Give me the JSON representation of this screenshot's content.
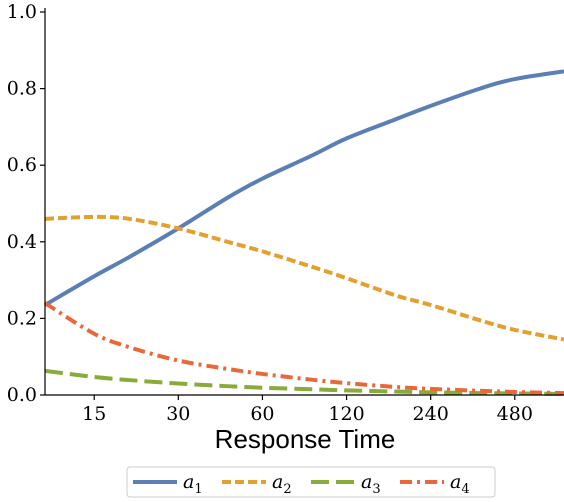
{
  "chart_data": {
    "type": "line",
    "xlabel": "Response Time",
    "ylabel": "",
    "title": "",
    "x_scale": "log2",
    "xlim": [
      10,
      720
    ],
    "ylim": [
      0,
      1.0
    ],
    "x_ticks": [
      {
        "value": 15,
        "label": "15"
      },
      {
        "value": 30,
        "label": "30"
      },
      {
        "value": 60,
        "label": "60"
      },
      {
        "value": 120,
        "label": "120"
      },
      {
        "value": 240,
        "label": "240"
      },
      {
        "value": 480,
        "label": "480"
      }
    ],
    "y_ticks": [
      {
        "value": 0.0,
        "label": "0.0"
      },
      {
        "value": 0.2,
        "label": "0.2"
      },
      {
        "value": 0.4,
        "label": "0.4"
      },
      {
        "value": 0.6,
        "label": "0.6"
      },
      {
        "value": 0.8,
        "label": "0.8"
      },
      {
        "value": 1.0,
        "label": "1.0"
      }
    ],
    "legend_position": "bottom-center",
    "series": [
      {
        "name": "a",
        "subscript": "1",
        "color": "#5b7fb5",
        "dash": "solid",
        "x": [
          10,
          15,
          20,
          30,
          45,
          60,
          90,
          120,
          180,
          240,
          360,
          480,
          720
        ],
        "y": [
          0.235,
          0.31,
          0.36,
          0.435,
          0.515,
          0.565,
          0.625,
          0.67,
          0.72,
          0.755,
          0.8,
          0.825,
          0.845
        ]
      },
      {
        "name": "a",
        "subscript": "2",
        "color": "#e2a02e",
        "dash": "dash",
        "x": [
          10,
          15,
          20,
          30,
          45,
          60,
          90,
          120,
          180,
          240,
          360,
          480,
          720
        ],
        "y": [
          0.46,
          0.465,
          0.46,
          0.435,
          0.4,
          0.375,
          0.335,
          0.305,
          0.26,
          0.235,
          0.195,
          0.17,
          0.145
        ]
      },
      {
        "name": "a",
        "subscript": "3",
        "color": "#8aab3a",
        "dash": "longdash",
        "x": [
          10,
          15,
          20,
          30,
          45,
          60,
          90,
          120,
          180,
          240,
          360,
          480,
          720
        ],
        "y": [
          0.063,
          0.047,
          0.039,
          0.03,
          0.023,
          0.019,
          0.015,
          0.012,
          0.009,
          0.007,
          0.005,
          0.004,
          0.003
        ]
      },
      {
        "name": "a",
        "subscript": "4",
        "color": "#e9683a",
        "dash": "dashdot",
        "x": [
          10,
          15,
          20,
          30,
          45,
          60,
          90,
          120,
          180,
          240,
          360,
          480,
          720
        ],
        "y": [
          0.24,
          0.16,
          0.125,
          0.09,
          0.068,
          0.055,
          0.04,
          0.031,
          0.021,
          0.016,
          0.011,
          0.008,
          0.005
        ]
      }
    ]
  }
}
